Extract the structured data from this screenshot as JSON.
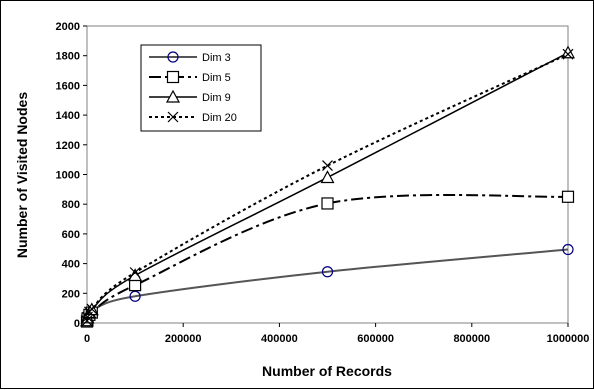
{
  "chart_data": {
    "type": "line",
    "title": "",
    "xlabel": "Number of Records",
    "ylabel": "Number of Visited Nodes",
    "xlim": [
      0,
      1000000
    ],
    "ylim": [
      0,
      2000
    ],
    "x_ticks": [
      "0",
      "200000",
      "400000",
      "600000",
      "800000",
      "1000000"
    ],
    "y_ticks": [
      "0",
      "200",
      "400",
      "600",
      "800",
      "1000",
      "1200",
      "1400",
      "1600",
      "1800",
      "2000"
    ],
    "grid": false,
    "legend_position": "top-left",
    "series": [
      {
        "name": "Dim 3",
        "marker": "circle",
        "line_style": "solid-gray",
        "color": "#555555",
        "x": [
          0,
          1000,
          5000,
          10000,
          100000,
          500000,
          1000000
        ],
        "y": [
          10,
          30,
          60,
          80,
          180,
          345,
          495
        ]
      },
      {
        "name": "Dim 5",
        "marker": "square",
        "line_style": "dash-dot",
        "color": "#000000",
        "x": [
          0,
          1000,
          5000,
          10000,
          100000,
          500000,
          1000000
        ],
        "y": [
          10,
          30,
          55,
          70,
          255,
          805,
          850
        ]
      },
      {
        "name": "Dim 9",
        "marker": "triangle",
        "line_style": "solid",
        "color": "#000000",
        "x": [
          0,
          1000,
          5000,
          10000,
          100000,
          500000,
          1000000
        ],
        "y": [
          15,
          35,
          70,
          90,
          320,
          980,
          1820
        ]
      },
      {
        "name": "Dim 20",
        "marker": "x",
        "line_style": "dotted",
        "color": "#000000",
        "x": [
          0,
          1000,
          5000,
          10000,
          100000,
          500000,
          1000000
        ],
        "y": [
          15,
          40,
          75,
          95,
          340,
          1060,
          1810
        ]
      }
    ]
  }
}
